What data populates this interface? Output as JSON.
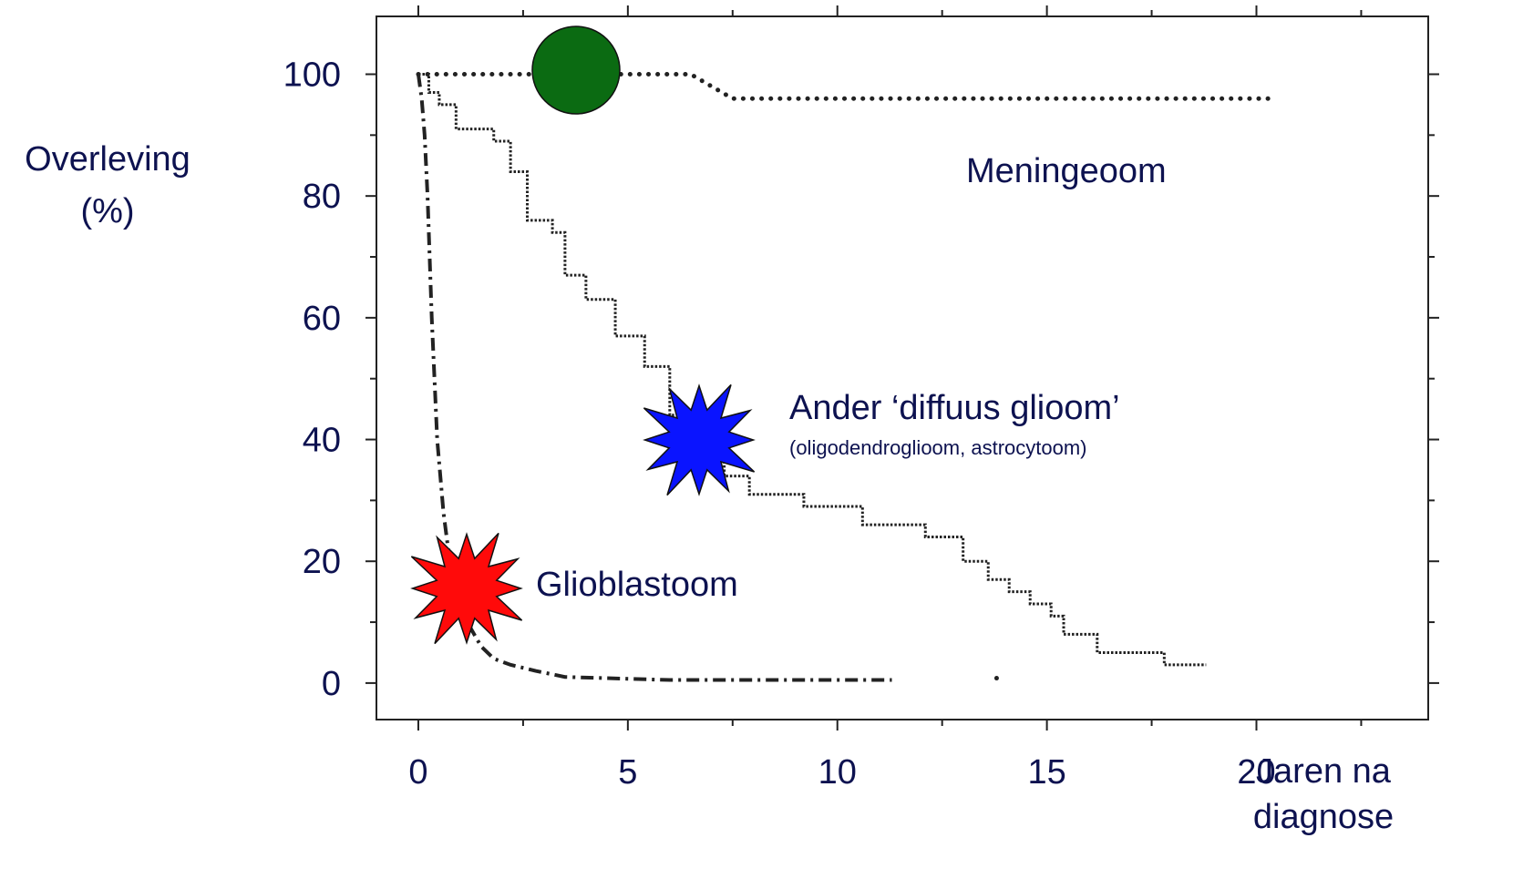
{
  "chart_data": {
    "type": "line",
    "ylabel_lines": [
      "Overleving",
      "(%)"
    ],
    "xlabel_lines": [
      "Jaren na",
      "diagnose"
    ],
    "xlim": [
      -1,
      24.1
    ],
    "ylim": [
      -6,
      109.5
    ],
    "x_ticks": [
      0,
      5,
      10,
      15,
      20
    ],
    "y_ticks": [
      0,
      20,
      40,
      60,
      80,
      100
    ],
    "x_minor_step": 2.5,
    "y_minor_step": 10,
    "grid": false,
    "series": [
      {
        "name": "Meningeoom",
        "style": "dotted-heavy",
        "marker": "green-circle",
        "marker_color": "#0b6b12",
        "x": [
          0,
          6.5,
          7.5,
          20.4
        ],
        "y": [
          100,
          100,
          96,
          96
        ]
      },
      {
        "name": "Ander ‘diffuus glioom’",
        "name_sub": "(oligodendroglioom, astrocytoom)",
        "style": "dotted-step",
        "marker": "blue-starburst",
        "marker_color": "#0a14ff",
        "x": [
          0,
          0.25,
          0.5,
          0.9,
          1.8,
          2.2,
          2.6,
          3.2,
          3.5,
          4.0,
          4.7,
          5.4,
          6.0,
          6.6,
          7.0,
          7.3,
          7.9,
          9.2,
          10.6,
          12.1,
          13.0,
          13.6,
          14.1,
          14.6,
          15.1,
          15.4,
          16.2,
          17.8,
          18.8
        ],
        "y": [
          100,
          97,
          95,
          91,
          89,
          84,
          76,
          74,
          67,
          63,
          57,
          52,
          44,
          43,
          40,
          34,
          31,
          29,
          26,
          24,
          20,
          17,
          15,
          13,
          11,
          8,
          5,
          3,
          3
        ]
      },
      {
        "name": "Glioblastoom",
        "style": "dash-dot",
        "marker": "red-starburst",
        "marker_color": "#ff0a0a",
        "x": [
          0,
          0.08,
          0.15,
          0.22,
          0.32,
          0.45,
          0.6,
          0.75,
          0.9,
          1.05,
          1.25,
          1.5,
          1.8,
          2.2,
          2.8,
          3.5,
          4.5,
          6.0,
          8.0,
          11.3
        ],
        "y": [
          100,
          96,
          90,
          80,
          60,
          40,
          28,
          20,
          15,
          12,
          9,
          6,
          4,
          3,
          2,
          1,
          0.8,
          0.5,
          0.5,
          0.5
        ]
      }
    ],
    "stray_point": {
      "x": 13.8,
      "y": 0.8
    }
  }
}
